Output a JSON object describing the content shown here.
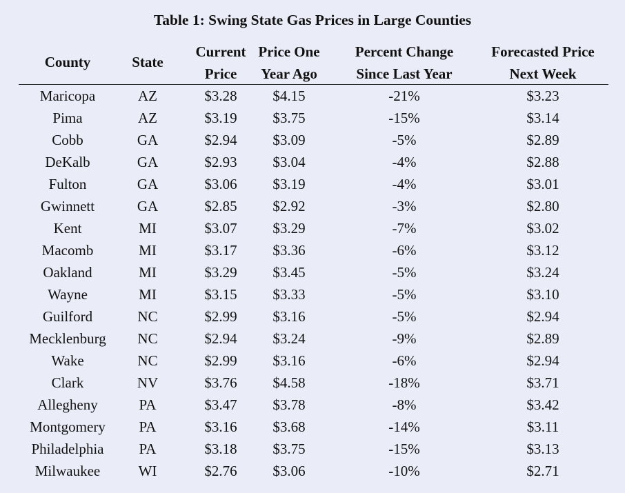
{
  "title": "Table 1: Swing State Gas Prices in Large Counties",
  "headers": {
    "county": "County",
    "state": "State",
    "current_1": "Current",
    "current_2": "Price",
    "ago_1": "Price One",
    "ago_2": "Year Ago",
    "pct_1": "Percent Change",
    "pct_2": "Since Last Year",
    "fore_1": "Forecasted Price",
    "fore_2": "Next Week"
  },
  "rows": [
    {
      "county": "Maricopa",
      "state": "AZ",
      "current": "$3.28",
      "year_ago": "$4.15",
      "pct_change": "-21%",
      "forecast": "$3.23"
    },
    {
      "county": "Pima",
      "state": "AZ",
      "current": "$3.19",
      "year_ago": "$3.75",
      "pct_change": "-15%",
      "forecast": "$3.14"
    },
    {
      "county": "Cobb",
      "state": "GA",
      "current": "$2.94",
      "year_ago": "$3.09",
      "pct_change": "-5%",
      "forecast": "$2.89"
    },
    {
      "county": "DeKalb",
      "state": "GA",
      "current": "$2.93",
      "year_ago": "$3.04",
      "pct_change": "-4%",
      "forecast": "$2.88"
    },
    {
      "county": "Fulton",
      "state": "GA",
      "current": "$3.06",
      "year_ago": "$3.19",
      "pct_change": "-4%",
      "forecast": "$3.01"
    },
    {
      "county": "Gwinnett",
      "state": "GA",
      "current": "$2.85",
      "year_ago": "$2.92",
      "pct_change": "-3%",
      "forecast": "$2.80"
    },
    {
      "county": "Kent",
      "state": "MI",
      "current": "$3.07",
      "year_ago": "$3.29",
      "pct_change": "-7%",
      "forecast": "$3.02"
    },
    {
      "county": "Macomb",
      "state": "MI",
      "current": "$3.17",
      "year_ago": "$3.36",
      "pct_change": "-6%",
      "forecast": "$3.12"
    },
    {
      "county": "Oakland",
      "state": "MI",
      "current": "$3.29",
      "year_ago": "$3.45",
      "pct_change": "-5%",
      "forecast": "$3.24"
    },
    {
      "county": "Wayne",
      "state": "MI",
      "current": "$3.15",
      "year_ago": "$3.33",
      "pct_change": "-5%",
      "forecast": "$3.10"
    },
    {
      "county": "Guilford",
      "state": "NC",
      "current": "$2.99",
      "year_ago": "$3.16",
      "pct_change": "-5%",
      "forecast": "$2.94"
    },
    {
      "county": "Mecklenburg",
      "state": "NC",
      "current": "$2.94",
      "year_ago": "$3.24",
      "pct_change": "-9%",
      "forecast": "$2.89"
    },
    {
      "county": "Wake",
      "state": "NC",
      "current": "$2.99",
      "year_ago": "$3.16",
      "pct_change": "-6%",
      "forecast": "$2.94"
    },
    {
      "county": "Clark",
      "state": "NV",
      "current": "$3.76",
      "year_ago": "$4.58",
      "pct_change": "-18%",
      "forecast": "$3.71"
    },
    {
      "county": "Allegheny",
      "state": "PA",
      "current": "$3.47",
      "year_ago": "$3.78",
      "pct_change": "-8%",
      "forecast": "$3.42"
    },
    {
      "county": "Montgomery",
      "state": "PA",
      "current": "$3.16",
      "year_ago": "$3.68",
      "pct_change": "-14%",
      "forecast": "$3.11"
    },
    {
      "county": "Philadelphia",
      "state": "PA",
      "current": "$3.18",
      "year_ago": "$3.75",
      "pct_change": "-15%",
      "forecast": "$3.13"
    },
    {
      "county": "Milwaukee",
      "state": "WI",
      "current": "$2.76",
      "year_ago": "$3.06",
      "pct_change": "-10%",
      "forecast": "$2.71"
    }
  ]
}
